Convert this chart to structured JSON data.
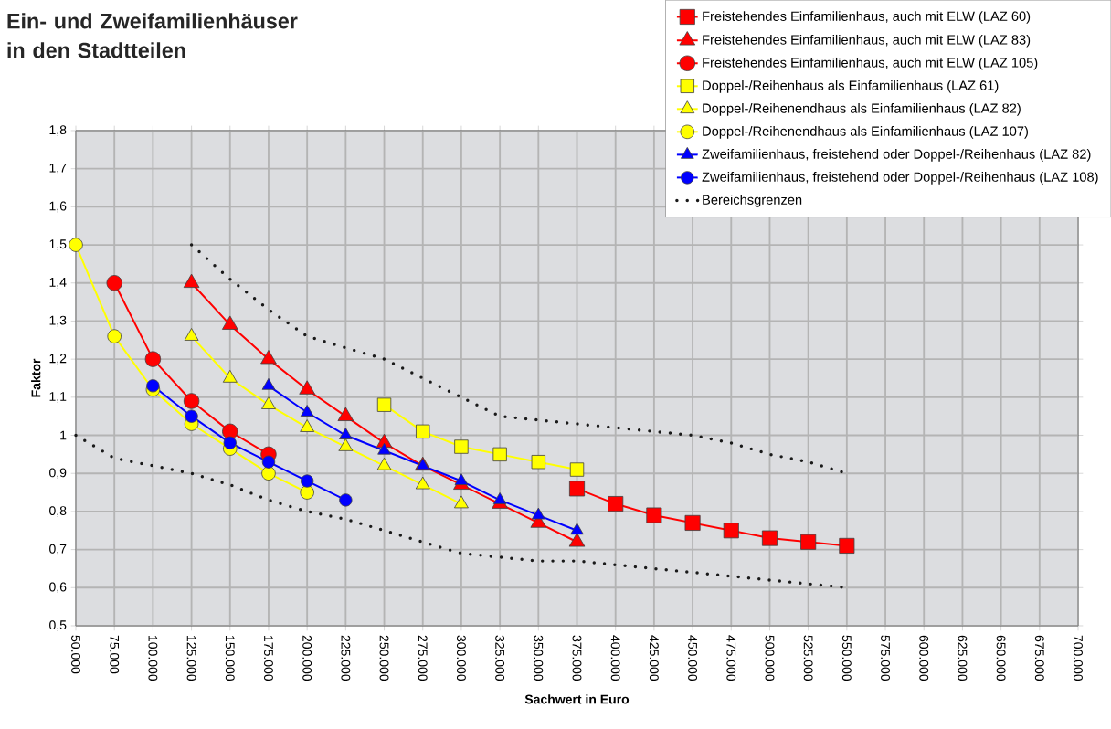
{
  "chart_data": {
    "type": "line",
    "title": "Ein- und Zweifamilienhäuser in den Stadtteilen",
    "xlabel": "Sachwert in Euro",
    "ylabel": "Faktor",
    "xlim": [
      50000,
      700000
    ],
    "ylim": [
      0.5,
      1.8
    ],
    "xticks": [
      {
        "value": 50000,
        "label": "50.000"
      },
      {
        "value": 75000,
        "label": "75.000"
      },
      {
        "value": 100000,
        "label": "100.000"
      },
      {
        "value": 125000,
        "label": "125.000"
      },
      {
        "value": 150000,
        "label": "150.000"
      },
      {
        "value": 175000,
        "label": "175.000"
      },
      {
        "value": 200000,
        "label": "200.000"
      },
      {
        "value": 225000,
        "label": "225.000"
      },
      {
        "value": 250000,
        "label": "250.000"
      },
      {
        "value": 275000,
        "label": "275.000"
      },
      {
        "value": 300000,
        "label": "300.000"
      },
      {
        "value": 325000,
        "label": "325.000"
      },
      {
        "value": 350000,
        "label": "350.000"
      },
      {
        "value": 375000,
        "label": "375.000"
      },
      {
        "value": 400000,
        "label": "400.000"
      },
      {
        "value": 425000,
        "label": "425.000"
      },
      {
        "value": 450000,
        "label": "450.000"
      },
      {
        "value": 475000,
        "label": "475.000"
      },
      {
        "value": 500000,
        "label": "500.000"
      },
      {
        "value": 525000,
        "label": "525.000"
      },
      {
        "value": 550000,
        "label": "550.000"
      },
      {
        "value": 575000,
        "label": "575.000"
      },
      {
        "value": 600000,
        "label": "600.000"
      },
      {
        "value": 625000,
        "label": "625.000"
      },
      {
        "value": 650000,
        "label": "650.000"
      },
      {
        "value": 675000,
        "label": "675.000"
      },
      {
        "value": 700000,
        "label": "700.000"
      }
    ],
    "yticks": [
      {
        "value": 0.5,
        "label": "0,5"
      },
      {
        "value": 0.6,
        "label": "0,6"
      },
      {
        "value": 0.7,
        "label": "0,7"
      },
      {
        "value": 0.8,
        "label": "0,8"
      },
      {
        "value": 0.9,
        "label": "0,9"
      },
      1,
      {
        "value": 1.1,
        "label": "1,1"
      },
      {
        "value": 1.2,
        "label": "1,2"
      },
      {
        "value": 1.3,
        "label": "1,3"
      },
      {
        "value": 1.4,
        "label": "1,4"
      },
      {
        "value": 1.5,
        "label": "1,5"
      },
      {
        "value": 1.6,
        "label": "1,6"
      },
      {
        "value": 1.7,
        "label": "1,7"
      },
      {
        "value": 1.8,
        "label": "1,8"
      }
    ],
    "grid": true,
    "legend": "top right",
    "series": [
      {
        "name": "Freistehendes Einfamilienhaus, auch mit ELW (LAZ 60)",
        "color": "#ff0000",
        "marker": "square",
        "x": [
          375000,
          400000,
          425000,
          450000,
          475000,
          500000,
          525000,
          550000
        ],
        "values": [
          0.86,
          0.82,
          0.79,
          0.77,
          0.75,
          0.73,
          0.72,
          0.71
        ]
      },
      {
        "name": "Freistehendes Einfamilienhaus, auch mit ELW (LAZ 83)",
        "color": "#ff0000",
        "marker": "triangle",
        "x": [
          125000,
          150000,
          175000,
          200000,
          225000,
          250000,
          275000,
          300000,
          325000,
          350000,
          375000
        ],
        "values": [
          1.4,
          1.29,
          1.2,
          1.12,
          1.05,
          0.98,
          0.92,
          0.87,
          0.82,
          0.77,
          0.72
        ]
      },
      {
        "name": "Freistehendes Einfamilienhaus, auch mit ELW (LAZ 105)",
        "color": "#ff0000",
        "marker": "circle",
        "x": [
          75000,
          100000,
          125000,
          150000,
          175000
        ],
        "values": [
          1.4,
          1.2,
          1.09,
          1.01,
          0.95
        ]
      },
      {
        "name": "Doppel-/Reihenhaus als Einfamilienhaus (LAZ 61)",
        "color": "#ffff00",
        "marker": "square",
        "x": [
          250000,
          275000,
          300000,
          325000,
          350000,
          375000
        ],
        "values": [
          1.08,
          1.01,
          0.97,
          0.95,
          0.93,
          0.91
        ]
      },
      {
        "name": "Doppel-/Reihenendhaus als Einfamilienhaus (LAZ 82)",
        "color": "#ffff00",
        "marker": "triangle",
        "x": [
          125000,
          150000,
          175000,
          200000,
          225000,
          250000,
          275000,
          300000
        ],
        "values": [
          1.26,
          1.15,
          1.08,
          1.02,
          0.97,
          0.92,
          0.87,
          0.82
        ]
      },
      {
        "name": "Doppel-/Reihenendhaus als Einfamilienhaus (LAZ 107)",
        "color": "#ffff00",
        "marker": "circle",
        "x": [
          50000,
          75000,
          100000,
          125000,
          150000,
          175000,
          200000
        ],
        "values": [
          1.5,
          1.26,
          1.12,
          1.03,
          0.965,
          0.9,
          0.85
        ]
      },
      {
        "name": "Zweifamilienhaus, freistehend oder Doppel-/Reihenhaus (LAZ 82)",
        "color": "#0000ff",
        "marker": "triangle",
        "x": [
          175000,
          200000,
          225000,
          250000,
          275000,
          300000,
          325000,
          350000,
          375000
        ],
        "values": [
          1.13,
          1.06,
          1.0,
          0.96,
          0.92,
          0.88,
          0.83,
          0.79,
          0.75
        ]
      },
      {
        "name": "Zweifamilienhaus, freistehend oder Doppel-/Reihenhaus (LAZ 108)",
        "color": "#0000ff",
        "marker": "circle",
        "x": [
          100000,
          125000,
          150000,
          175000,
          200000,
          225000
        ],
        "values": [
          1.13,
          1.05,
          0.98,
          0.93,
          0.88,
          0.83
        ]
      },
      {
        "name": "Bereichsgrenzen",
        "color": "#1a1a1a",
        "marker": "none",
        "line_style": "dotted",
        "x": [
          125000,
          150000,
          175000,
          200000,
          225000,
          250000,
          275000,
          300000,
          325000,
          350000,
          375000,
          400000,
          425000,
          450000,
          475000,
          500000,
          525000,
          550000
        ],
        "values": [
          1.5,
          1.41,
          1.33,
          1.26,
          1.23,
          1.2,
          1.15,
          1.1,
          1.05,
          1.04,
          1.03,
          1.02,
          1.01,
          1.0,
          0.98,
          0.95,
          0.93,
          0.9
        ]
      },
      {
        "color": "#1a1a1a",
        "marker": "none",
        "line_style": "dotted",
        "x": [
          50000,
          75000,
          100000,
          125000,
          150000,
          175000,
          200000,
          225000,
          250000,
          275000,
          300000,
          325000,
          350000,
          375000,
          400000,
          425000,
          450000,
          475000,
          500000,
          525000,
          550000
        ],
        "values": [
          1.0,
          0.94,
          0.92,
          0.9,
          0.87,
          0.83,
          0.8,
          0.78,
          0.75,
          0.72,
          0.69,
          0.68,
          0.67,
          0.67,
          0.66,
          0.65,
          0.64,
          0.63,
          0.62,
          0.61,
          0.6
        ]
      }
    ]
  }
}
